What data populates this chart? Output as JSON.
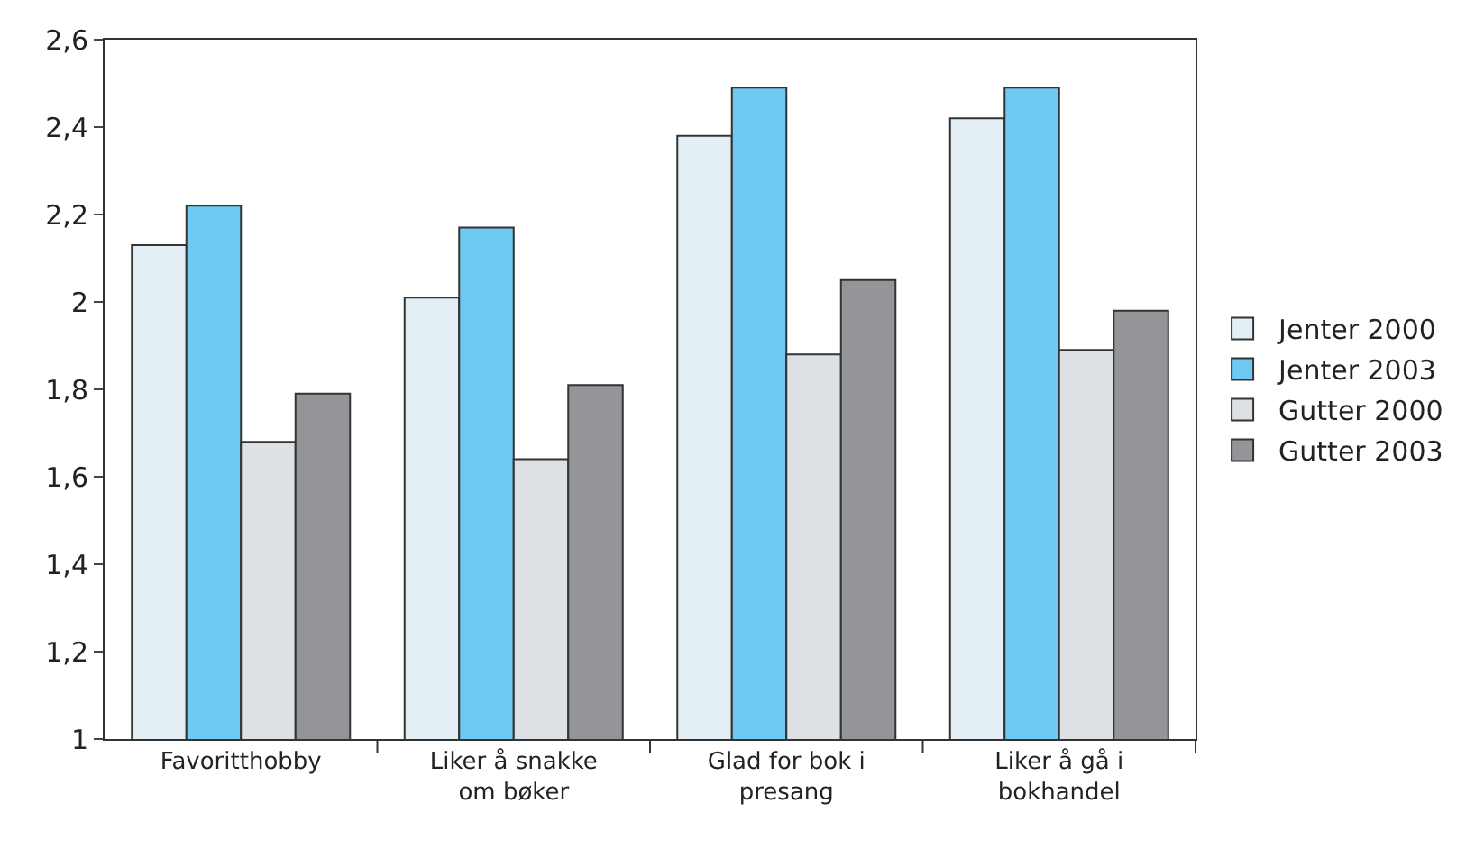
{
  "chart_data": {
    "type": "bar",
    "categories": [
      "Favoritthobby",
      "Liker å snakke om bøker",
      "Glad for bok i presang",
      "Liker å gå i bokhandel"
    ],
    "series": [
      {
        "name": "Jenter 2000",
        "color": "#e3eff5",
        "values": [
          2.13,
          2.01,
          2.38,
          2.42
        ]
      },
      {
        "name": "Jenter 2003",
        "color": "#6ecaf0",
        "values": [
          2.22,
          2.17,
          2.49,
          2.49
        ]
      },
      {
        "name": "Gutter 2000",
        "color": "#dde0e5",
        "values": [
          1.68,
          1.64,
          1.88,
          1.89
        ]
      },
      {
        "name": "Gutter 2003",
        "color": "#949598",
        "values": [
          1.79,
          1.81,
          2.05,
          1.98
        ]
      }
    ],
    "ylim": [
      1,
      2.6
    ],
    "yticks": [
      1,
      {
        "value": 1.2,
        "label": "1,2"
      },
      {
        "value": 1.4,
        "label": "1,4"
      },
      {
        "value": 1.6,
        "label": "1,6"
      },
      {
        "value": 1.8,
        "label": "1,8"
      },
      2,
      {
        "value": 2.2,
        "label": "2,2"
      },
      {
        "value": 2.4,
        "label": "2,4"
      },
      {
        "value": 2.6,
        "label": "2,6"
      }
    ],
    "grid": false,
    "legend": "right"
  }
}
